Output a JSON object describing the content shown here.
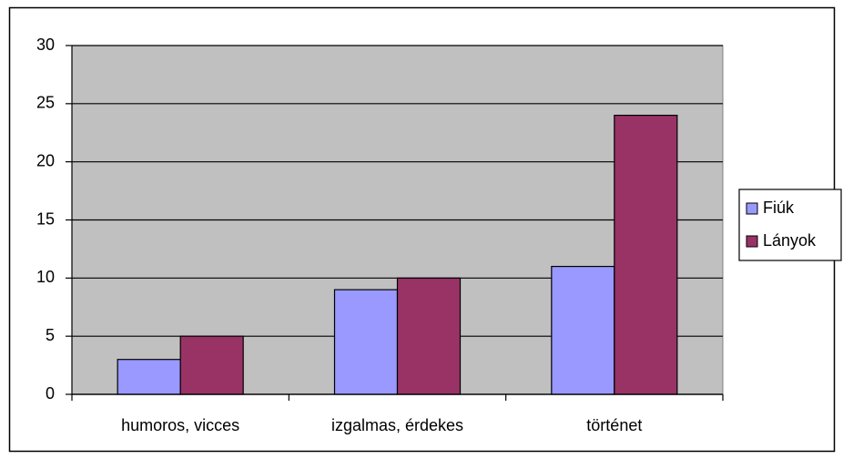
{
  "chart_data": {
    "type": "bar",
    "categories": [
      "humoros, vicces",
      "izgalmas, érdekes",
      "történet"
    ],
    "series": [
      {
        "name": "Fiúk",
        "color": "#9999ff",
        "values": [
          3,
          9,
          11
        ]
      },
      {
        "name": "Lányok",
        "color": "#993366",
        "values": [
          5,
          10,
          24
        ]
      }
    ],
    "ylim": [
      0,
      30
    ],
    "yticks": [
      0,
      5,
      10,
      15,
      20,
      25,
      30
    ],
    "grid": true,
    "legend": "right"
  }
}
